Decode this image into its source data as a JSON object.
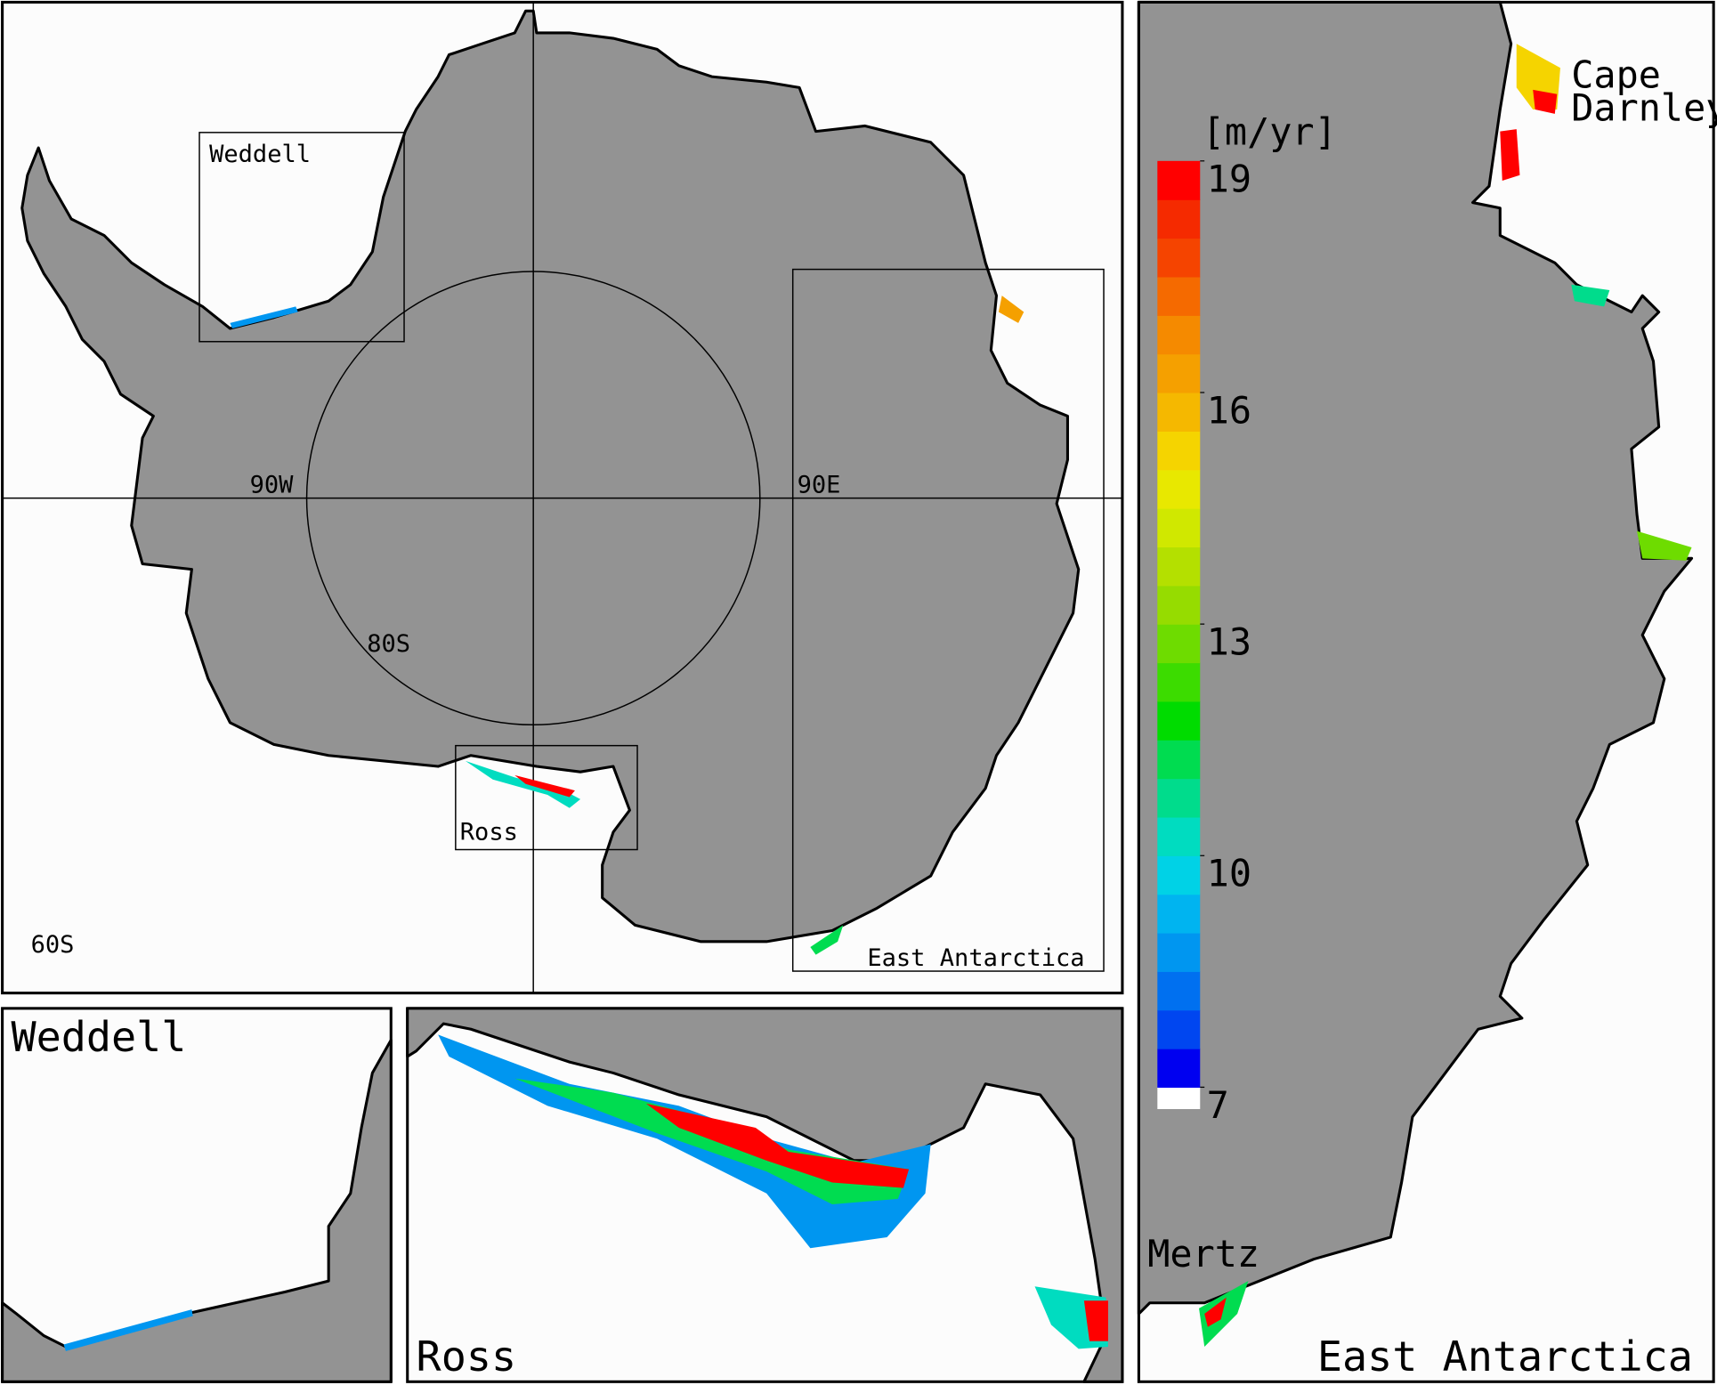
{
  "main_map": {
    "box_labels": [
      "Weddell",
      "Ross",
      "East Antarctica"
    ],
    "meridian_labels": [
      "90W",
      "90E"
    ],
    "latitude_labels": [
      "80S",
      "60S"
    ]
  },
  "panels": {
    "weddell": "Weddell",
    "ross": "Ross",
    "east_antarctica": "East Antarctica"
  },
  "place_labels": {
    "cape_darnley": [
      "Cape",
      "Darnley"
    ],
    "mertz": "Mertz"
  },
  "colorbar": {
    "unit": "[m/yr]",
    "range": [
      7,
      19
    ],
    "ticks": [
      19,
      16,
      13,
      10,
      7
    ],
    "below_color": "#ffffff",
    "colors": [
      "#0000f0",
      "#0046f0",
      "#0070f0",
      "#0096f0",
      "#00b4f0",
      "#00d2e6",
      "#00dcc0",
      "#00dc8c",
      "#00dc50",
      "#00dc00",
      "#3cdc00",
      "#6edc00",
      "#96dc00",
      "#b4e000",
      "#d0e800",
      "#e8e800",
      "#f5d400",
      "#f5b800",
      "#f5a000",
      "#f58a00",
      "#f56a00",
      "#f54400",
      "#f52a00",
      "#ff0000"
    ]
  }
}
